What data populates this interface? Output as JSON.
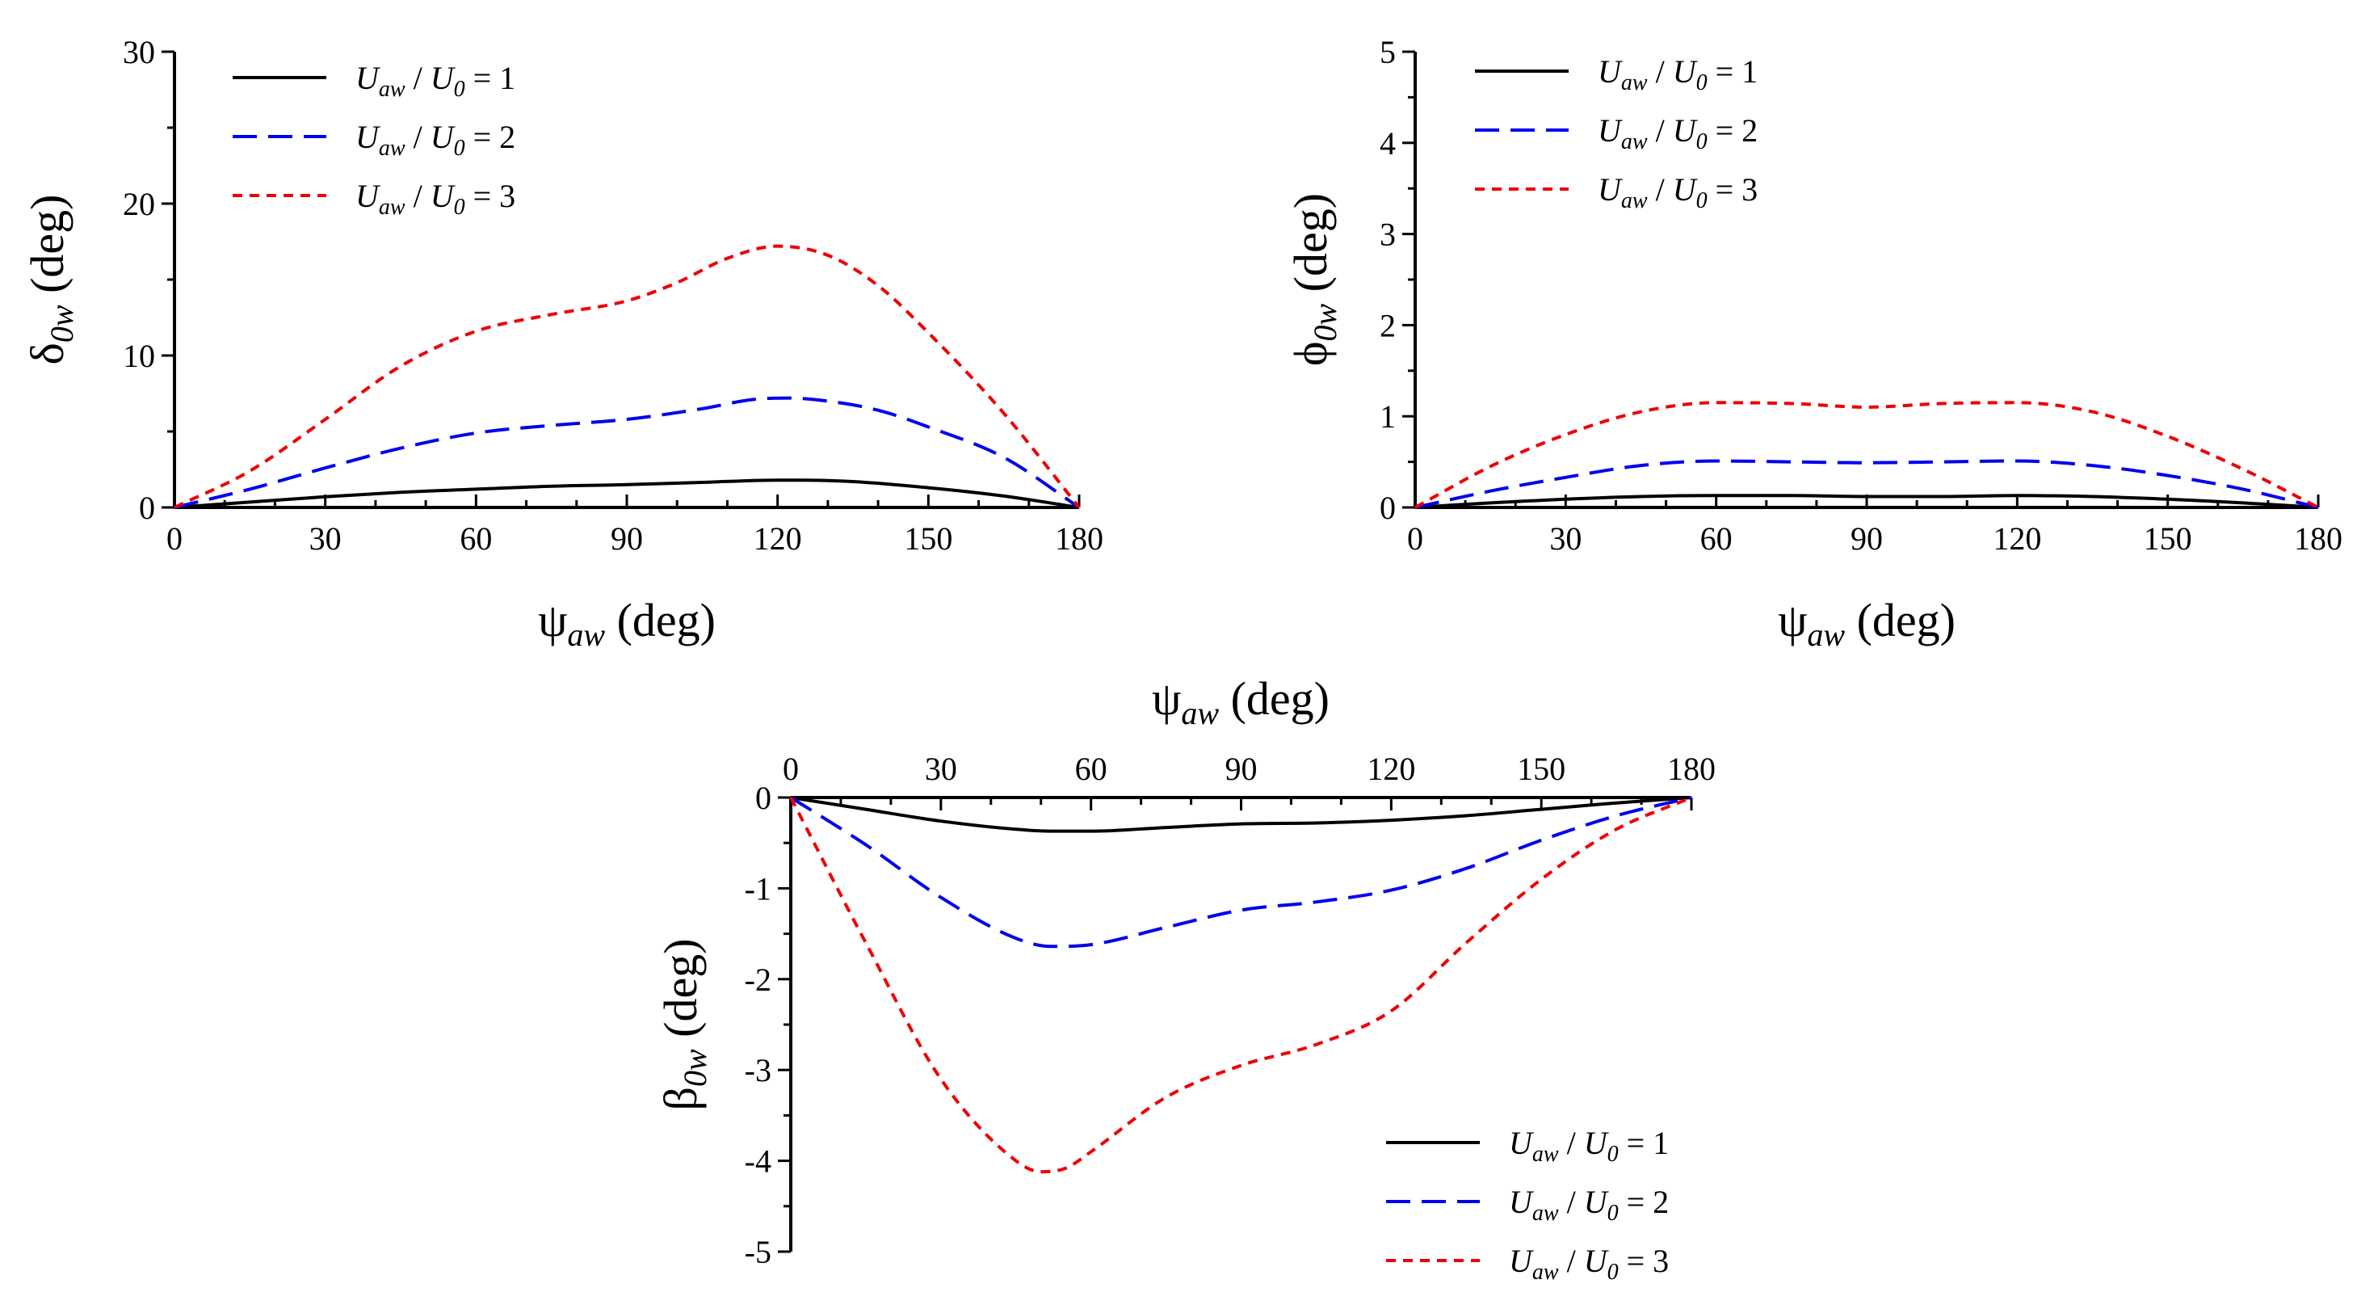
{
  "chart_data": [
    {
      "id": "delta",
      "type": "line",
      "ylabel": {
        "symbol": "δ",
        "sub": "0w",
        "unit": " (deg)"
      },
      "xlabel": {
        "symbol": "ψ",
        "sub": "aw",
        "unit": " (deg)"
      },
      "xlim": [
        0,
        180
      ],
      "ylim": [
        0,
        30
      ],
      "xticks": [
        "0",
        "30",
        "60",
        "90",
        "120",
        "150",
        "180"
      ],
      "yticks": [
        "0",
        "10",
        "20",
        "30"
      ],
      "legend_position": "top-left",
      "series": [
        {
          "name": "U_aw / U_0 = 1",
          "ratio": "1",
          "color": "#000000",
          "dash": "solid",
          "x": [
            0,
            15,
            30,
            45,
            60,
            75,
            90,
            105,
            120,
            125,
            135,
            150,
            165,
            180
          ],
          "y": [
            0,
            0.35,
            0.7,
            1.0,
            1.2,
            1.4,
            1.5,
            1.65,
            1.8,
            1.8,
            1.7,
            1.3,
            0.75,
            0
          ]
        },
        {
          "name": "U_aw / U_0 = 2",
          "ratio": "2",
          "color": "#0000ee",
          "dash": "long",
          "x": [
            0,
            15,
            30,
            45,
            60,
            75,
            90,
            105,
            115,
            122,
            130,
            140,
            150,
            165,
            180
          ],
          "y": [
            0,
            1.2,
            2.6,
            3.9,
            4.9,
            5.4,
            5.8,
            6.5,
            7.1,
            7.2,
            7.0,
            6.4,
            5.3,
            3.3,
            0
          ]
        },
        {
          "name": "U_aw / U_0 = 3",
          "ratio": "3",
          "color": "#ee0000",
          "dash": "short",
          "x": [
            0,
            15,
            30,
            45,
            60,
            75,
            90,
            100,
            110,
            120,
            130,
            140,
            150,
            165,
            180
          ],
          "y": [
            0,
            2.4,
            5.8,
            9.3,
            11.6,
            12.7,
            13.6,
            14.8,
            16.4,
            17.2,
            16.6,
            14.6,
            11.5,
            6.2,
            0
          ]
        }
      ]
    },
    {
      "id": "phi",
      "type": "line",
      "ylabel": {
        "symbol": "ϕ",
        "sub": "0w",
        "unit": " (deg)"
      },
      "xlabel": {
        "symbol": "ψ",
        "sub": "aw",
        "unit": " (deg)"
      },
      "xlim": [
        0,
        180
      ],
      "ylim": [
        0,
        5
      ],
      "xticks": [
        "0",
        "30",
        "60",
        "90",
        "120",
        "150",
        "180"
      ],
      "yticks": [
        "0",
        "1",
        "2",
        "3",
        "4",
        "5"
      ],
      "legend_position": "top-left",
      "series": [
        {
          "name": "U_aw / U_0 = 1",
          "ratio": "1",
          "color": "#000000",
          "dash": "solid",
          "x": [
            0,
            15,
            30,
            45,
            60,
            75,
            90,
            105,
            120,
            135,
            150,
            165,
            180
          ],
          "y": [
            0,
            0.05,
            0.09,
            0.12,
            0.13,
            0.13,
            0.12,
            0.12,
            0.13,
            0.12,
            0.09,
            0.05,
            0
          ]
        },
        {
          "name": "U_aw / U_0 = 2",
          "ratio": "2",
          "color": "#0000ee",
          "dash": "long",
          "x": [
            0,
            15,
            30,
            45,
            60,
            75,
            90,
            105,
            120,
            135,
            150,
            165,
            180
          ],
          "y": [
            0,
            0.18,
            0.33,
            0.46,
            0.51,
            0.5,
            0.49,
            0.5,
            0.51,
            0.46,
            0.35,
            0.2,
            0
          ]
        },
        {
          "name": "U_aw / U_0 = 3",
          "ratio": "3",
          "color": "#ee0000",
          "dash": "short",
          "x": [
            0,
            15,
            30,
            45,
            60,
            75,
            90,
            105,
            120,
            135,
            150,
            165,
            180
          ],
          "y": [
            0,
            0.45,
            0.8,
            1.05,
            1.15,
            1.14,
            1.1,
            1.14,
            1.15,
            1.05,
            0.78,
            0.42,
            0
          ]
        }
      ]
    },
    {
      "id": "beta",
      "type": "line",
      "ylabel": {
        "symbol": "β",
        "sub": "0w",
        "unit": " (deg)"
      },
      "xlabel": {
        "symbol": "ψ",
        "sub": "aw",
        "unit": " (deg)"
      },
      "xlim": [
        0,
        180
      ],
      "ylim": [
        -5,
        0
      ],
      "xticks": [
        "0",
        "30",
        "60",
        "90",
        "120",
        "150",
        "180"
      ],
      "yticks": [
        "0",
        "-1",
        "-2",
        "-3",
        "-4",
        "-5"
      ],
      "legend_position": "bottom-right",
      "series": [
        {
          "name": "U_aw / U_0 = 1",
          "ratio": "1",
          "color": "#000000",
          "dash": "solid",
          "x": [
            0,
            15,
            30,
            45,
            52,
            60,
            75,
            90,
            105,
            120,
            135,
            150,
            165,
            180
          ],
          "y": [
            0,
            -0.13,
            -0.26,
            -0.35,
            -0.37,
            -0.37,
            -0.33,
            -0.29,
            -0.28,
            -0.25,
            -0.2,
            -0.13,
            -0.06,
            0
          ]
        },
        {
          "name": "U_aw / U_0 = 2",
          "ratio": "2",
          "color": "#0000ee",
          "dash": "long",
          "x": [
            0,
            15,
            30,
            45,
            52,
            60,
            75,
            90,
            105,
            120,
            135,
            150,
            165,
            180
          ],
          "y": [
            0,
            -0.52,
            -1.1,
            -1.55,
            -1.64,
            -1.62,
            -1.43,
            -1.24,
            -1.15,
            -1.02,
            -0.78,
            -0.47,
            -0.2,
            0
          ]
        },
        {
          "name": "U_aw / U_0 = 3",
          "ratio": "3",
          "color": "#ee0000",
          "dash": "short",
          "x": [
            0,
            15,
            30,
            45,
            50,
            55,
            60,
            75,
            90,
            105,
            120,
            135,
            150,
            165,
            180
          ],
          "y": [
            0,
            -1.6,
            -3.1,
            -4.0,
            -4.12,
            -4.08,
            -3.9,
            -3.3,
            -2.95,
            -2.72,
            -2.35,
            -1.6,
            -0.9,
            -0.35,
            0
          ]
        }
      ]
    }
  ]
}
